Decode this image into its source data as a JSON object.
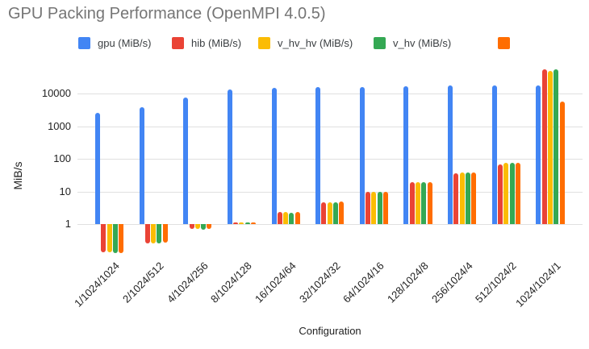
{
  "title": "GPU Packing Performance (OpenMPI 4.0.5)",
  "chart_data": {
    "type": "bar",
    "title": "GPU Packing Performance (OpenMPI 4.0.5)",
    "xlabel": "Configuration",
    "ylabel": "MiB/s",
    "y_scale": "log",
    "ylim": [
      0.1,
      100000
    ],
    "grid": true,
    "legend_position": "top",
    "y_tick_labels": [
      "1",
      "10",
      "100",
      "1000",
      "10000"
    ],
    "categories": [
      "1/1024/1024",
      "2/1024/512",
      "4/1024/256",
      "8/1024/128",
      "16/1024/64",
      "32/1024/32",
      "64/1024/16",
      "128/1024/8",
      "256/1024/4",
      "512/1024/2",
      "1024/1024/1"
    ],
    "series": [
      {
        "label": "gpu (MiB/s)",
        "color": "#4285F4",
        "values": [
          2600,
          3700,
          7500,
          13500,
          15000,
          16000,
          16000,
          16500,
          17500,
          17500,
          18000
        ]
      },
      {
        "label": "hib (MiB/s)",
        "color": "#EA4335",
        "values": [
          0.14,
          0.26,
          0.7,
          1.15,
          2.3,
          4.7,
          9.5,
          19,
          36,
          68,
          55000
        ]
      },
      {
        "label": "v_hv_hv (MiB/s)",
        "color": "#FBBC04",
        "values": [
          0.14,
          0.26,
          0.7,
          1.15,
          2.3,
          4.7,
          9.5,
          19,
          38,
          77,
          50000
        ]
      },
      {
        "label": "v_hv (MiB/s)",
        "color": "#34A853",
        "values": [
          0.13,
          0.26,
          0.68,
          1.1,
          2.2,
          4.7,
          9.8,
          19,
          37,
          74,
          55000
        ]
      },
      {
        "label": "",
        "color": "#FF6D01",
        "values": [
          0.13,
          0.27,
          0.7,
          1.1,
          2.3,
          4.8,
          9.5,
          19,
          38,
          77,
          5800
        ]
      }
    ]
  }
}
